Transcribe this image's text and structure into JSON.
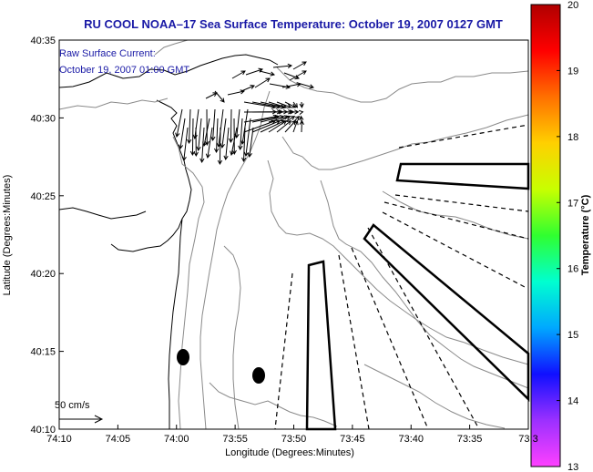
{
  "title": "RU COOL  NOAA–17  Sea Surface Temperature:  October 19, 2007 0127 GMT",
  "notes": [
    "Raw Surface Current:",
    "October 19, 2007 01:00 GMT"
  ],
  "xlabel": "Longitude (Degrees:Minutes)",
  "ylabel": "Latitude (Degrees:Minutes)",
  "x_ticks": [
    "74:10",
    "74:05",
    "74:00",
    "73:55",
    "73:50",
    "73:45",
    "73:40",
    "73:35",
    "73:3"
  ],
  "y_ticks": [
    "40:10",
    "40:15",
    "40:20",
    "40:25",
    "40:30",
    "40:35"
  ],
  "scale_label": "50 cm/s",
  "colorbar": {
    "label": "Temperature (°C)",
    "min": 13,
    "max": 20,
    "ticks": [
      "13",
      "14",
      "15",
      "16",
      "17",
      "18",
      "19",
      "20"
    ],
    "colors": [
      "#ff40ff",
      "#9b30ff",
      "#1010ff",
      "#00a8ff",
      "#00ffd0",
      "#30ff30",
      "#c8ff00",
      "#ffd000",
      "#ff7000",
      "#ff0000",
      "#b00000"
    ]
  },
  "map_data": {
    "extent": {
      "lon_west": "74:10",
      "lon_east": "73:30",
      "lat_south": "40:10",
      "lat_north": "40:35"
    },
    "markers": [
      {
        "name": "black-dot-west",
        "lon_min": 59.0,
        "lat_min": 14.7
      },
      {
        "name": "black-dot-east",
        "lon_min": 52.3,
        "lat_min": 13.5
      }
    ]
  }
}
